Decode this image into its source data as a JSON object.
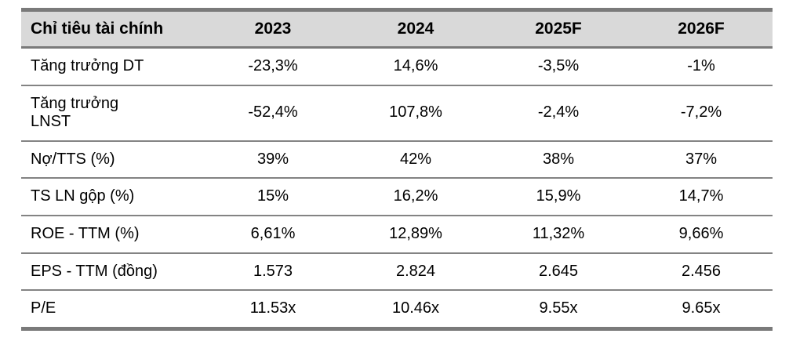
{
  "colors": {
    "header_background": "#d9d9d9",
    "outer_border": "#7a7a7a",
    "row_divider": "#838383",
    "text": "#000000",
    "page_background": "#ffffff"
  },
  "table": {
    "headers": [
      "Chỉ tiêu tài chính",
      "2023",
      "2024",
      "2025F",
      "2026F"
    ],
    "rows": [
      {
        "label": "Tăng trưởng DT",
        "values": [
          "-23,3%",
          "14,6%",
          "-3,5%",
          "-1%"
        ]
      },
      {
        "label": "Tăng trưởng\nLNST",
        "values": [
          "-52,4%",
          "107,8%",
          "-2,4%",
          "-7,2%"
        ]
      },
      {
        "label": "Nợ/TTS (%)",
        "values": [
          "39%",
          "42%",
          "38%",
          "37%"
        ]
      },
      {
        "label": "TS LN gộp (%)",
        "values": [
          "15%",
          "16,2%",
          "15,9%",
          "14,7%"
        ]
      },
      {
        "label": "ROE - TTM (%)",
        "values": [
          "6,61%",
          "12,89%",
          "11,32%",
          "9,66%"
        ]
      },
      {
        "label": "EPS - TTM (đồng)",
        "values": [
          "1.573",
          "2.824",
          "2.645",
          "2.456"
        ]
      },
      {
        "label": "P/E",
        "values": [
          "11.53x",
          "10.46x",
          "9.55x",
          "9.65x"
        ]
      }
    ]
  },
  "chart_data": {
    "type": "table",
    "title": "Chỉ tiêu tài chính",
    "columns": [
      "Chỉ tiêu tài chính",
      "2023",
      "2024",
      "2025F",
      "2026F"
    ],
    "rows": [
      [
        "Tăng trưởng DT",
        "-23,3%",
        "14,6%",
        "-3,5%",
        "-1%"
      ],
      [
        "Tăng trưởng LNST",
        "-52,4%",
        "107,8%",
        "-2,4%",
        "-7,2%"
      ],
      [
        "Nợ/TTS (%)",
        "39%",
        "42%",
        "38%",
        "37%"
      ],
      [
        "TS LN gộp (%)",
        "15%",
        "16,2%",
        "15,9%",
        "14,7%"
      ],
      [
        "ROE - TTM (%)",
        "6,61%",
        "12,89%",
        "11,32%",
        "9,66%"
      ],
      [
        "EPS - TTM (đồng)",
        "1.573",
        "2.824",
        "2.645",
        "2.456"
      ],
      [
        "P/E",
        "11.53x",
        "10.46x",
        "9.55x",
        "9.65x"
      ]
    ]
  }
}
